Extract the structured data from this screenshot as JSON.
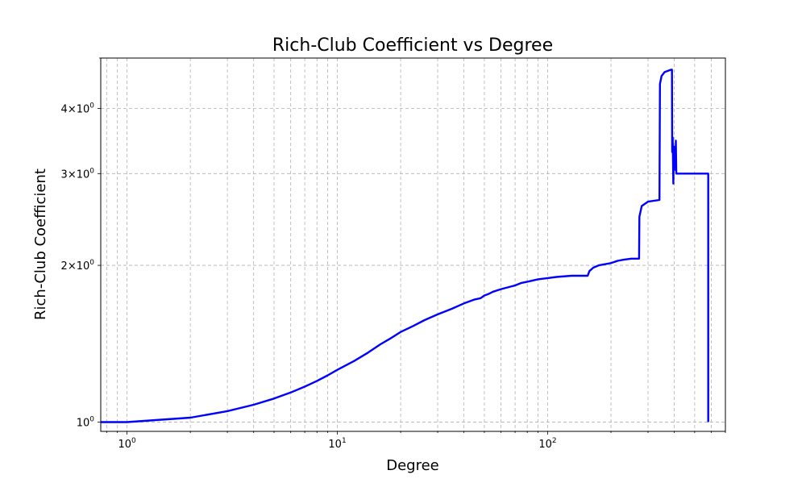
{
  "chart_data": {
    "type": "line",
    "title": "Rich-Club Coefficient vs Degree",
    "xlabel": "Degree",
    "ylabel": "Rich-Club Coefficient",
    "xscale": "log",
    "yscale": "log",
    "xlim": [
      0.75,
      700
    ],
    "ylim": [
      0.96,
      5.0
    ],
    "grid": true,
    "line_color": "#0000ff",
    "x_major_ticks": [
      {
        "value": 1,
        "base": "10",
        "exp": "0"
      },
      {
        "value": 10,
        "base": "10",
        "exp": "1"
      },
      {
        "value": 100,
        "base": "10",
        "exp": "2"
      }
    ],
    "y_ticks": [
      {
        "value": 1,
        "mantissa": "",
        "base": "10",
        "exp": "0"
      },
      {
        "value": 2,
        "mantissa": "2×",
        "base": "10",
        "exp": "0"
      },
      {
        "value": 3,
        "mantissa": "3×",
        "base": "10",
        "exp": "0"
      },
      {
        "value": 4,
        "mantissa": "4×",
        "base": "10",
        "exp": "0"
      }
    ],
    "y_minor_ticks": [
      5
    ],
    "series": [
      {
        "x": [
          0.1,
          1,
          2,
          3,
          4,
          5,
          6,
          7,
          8,
          9,
          10,
          12,
          14,
          16,
          18,
          20,
          23,
          26,
          30,
          35,
          40,
          45,
          48,
          50,
          52,
          55,
          60,
          70,
          75,
          80,
          90,
          100,
          110,
          130,
          155,
          158,
          165,
          175,
          200,
          215,
          230,
          250,
          272,
          273,
          280,
          300,
          340,
          342,
          348,
          360,
          375,
          387,
          390,
          391,
          393,
          396,
          398,
          400,
          403,
          405,
          407,
          409,
          410,
          420,
          450,
          500,
          580,
          580
        ],
        "y": [
          1.0,
          1.0,
          1.02,
          1.05,
          1.08,
          1.11,
          1.14,
          1.17,
          1.2,
          1.23,
          1.26,
          1.31,
          1.36,
          1.41,
          1.45,
          1.49,
          1.53,
          1.57,
          1.61,
          1.65,
          1.69,
          1.72,
          1.73,
          1.75,
          1.76,
          1.78,
          1.8,
          1.83,
          1.85,
          1.86,
          1.88,
          1.89,
          1.9,
          1.91,
          1.91,
          1.95,
          1.98,
          2.0,
          2.02,
          2.04,
          2.05,
          2.06,
          2.06,
          2.48,
          2.6,
          2.65,
          2.67,
          4.46,
          4.62,
          4.7,
          4.73,
          4.75,
          4.75,
          3.3,
          3.52,
          2.87,
          3.3,
          3.38,
          3.2,
          3.05,
          3.47,
          3.0,
          3.0,
          3.0,
          3.0,
          3.0,
          3.0,
          1.0
        ]
      }
    ]
  }
}
